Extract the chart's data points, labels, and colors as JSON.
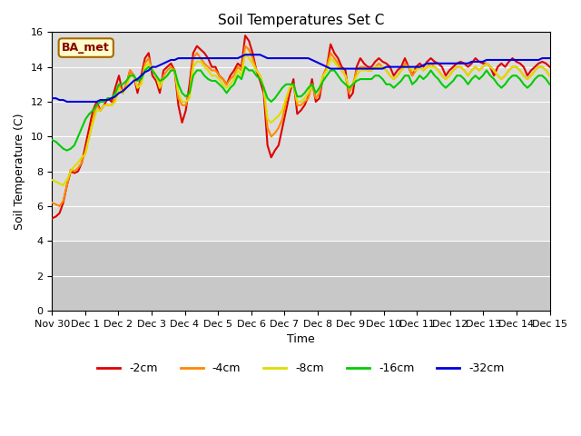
{
  "title": "Soil Temperatures Set C",
  "xlabel": "Time",
  "ylabel": "Soil Temperature (C)",
  "annotation": "BA_met",
  "ylim": [
    0,
    16
  ],
  "yticks": [
    0,
    2,
    4,
    6,
    8,
    10,
    12,
    14,
    16
  ],
  "xtick_labels": [
    "Nov 30",
    "Dec 1",
    "Dec 2",
    "Dec 3",
    "Dec 4",
    "Dec 5",
    "Dec 6",
    "Dec 7",
    "Dec 8",
    "Dec 9",
    "Dec 10",
    "Dec 11",
    "Dec 12",
    "Dec 13",
    "Dec 14",
    "Dec 15"
  ],
  "colors": {
    "-2cm": "#dd0000",
    "-4cm": "#ff8800",
    "-8cm": "#dddd00",
    "-16cm": "#00cc00",
    "-32cm": "#0000dd"
  },
  "bg_upper": "#dcdcdc",
  "bg_lower": "#c8c8c8",
  "figsize": [
    6.4,
    4.8
  ],
  "dpi": 100,
  "series": {
    "-2cm": [
      5.3,
      5.4,
      5.6,
      6.2,
      7.2,
      8.0,
      7.9,
      8.0,
      8.5,
      9.5,
      10.5,
      11.5,
      12.0,
      11.5,
      11.8,
      12.2,
      12.0,
      12.8,
      13.5,
      12.5,
      13.0,
      13.8,
      13.5,
      12.5,
      13.5,
      14.5,
      14.8,
      13.5,
      13.2,
      12.5,
      13.8,
      14.0,
      14.2,
      13.8,
      11.8,
      10.8,
      11.5,
      13.0,
      14.8,
      15.2,
      15.0,
      14.8,
      14.5,
      14.0,
      14.0,
      13.5,
      13.3,
      13.0,
      13.5,
      13.8,
      14.2,
      14.0,
      15.8,
      15.5,
      14.8,
      13.8,
      13.2,
      12.5,
      9.5,
      8.8,
      9.2,
      9.5,
      10.5,
      11.5,
      12.5,
      13.3,
      11.3,
      11.5,
      11.8,
      12.3,
      13.3,
      12.0,
      12.2,
      13.5,
      14.0,
      15.3,
      14.8,
      14.5,
      14.0,
      13.8,
      12.2,
      12.5,
      14.0,
      14.5,
      14.2,
      14.0,
      14.0,
      14.3,
      14.5,
      14.3,
      14.2,
      14.0,
      13.5,
      13.8,
      14.0,
      14.5,
      14.0,
      13.5,
      14.0,
      14.2,
      14.0,
      14.3,
      14.5,
      14.3,
      14.2,
      14.0,
      13.5,
      13.8,
      14.0,
      14.2,
      14.3,
      14.2,
      14.0,
      14.2,
      14.5,
      14.3,
      14.2,
      14.2,
      14.0,
      13.5,
      14.0,
      14.2,
      14.0,
      14.3,
      14.5,
      14.3,
      14.2,
      14.0,
      13.5,
      13.8,
      14.0,
      14.2,
      14.3,
      14.2,
      14.0
    ],
    "-4cm": [
      6.2,
      6.1,
      6.0,
      6.3,
      7.2,
      8.1,
      8.0,
      8.2,
      8.5,
      9.2,
      10.0,
      11.0,
      11.8,
      11.5,
      11.8,
      11.8,
      11.8,
      12.2,
      13.0,
      12.5,
      13.0,
      13.8,
      13.5,
      12.8,
      13.2,
      14.2,
      14.5,
      13.8,
      13.5,
      12.8,
      13.5,
      13.8,
      14.0,
      13.8,
      12.2,
      11.8,
      11.8,
      12.5,
      14.5,
      14.8,
      14.5,
      14.2,
      14.0,
      13.8,
      13.8,
      13.5,
      13.3,
      13.0,
      13.3,
      13.5,
      14.0,
      13.8,
      15.2,
      15.0,
      14.5,
      13.8,
      13.5,
      12.8,
      10.5,
      10.0,
      10.2,
      10.5,
      11.0,
      12.0,
      12.8,
      13.0,
      11.8,
      11.8,
      12.0,
      12.2,
      13.0,
      12.2,
      12.5,
      13.5,
      14.0,
      14.8,
      14.5,
      14.2,
      13.8,
      13.5,
      12.5,
      13.0,
      13.8,
      14.0,
      14.0,
      13.8,
      13.8,
      14.0,
      14.2,
      14.0,
      13.8,
      13.5,
      13.3,
      13.5,
      13.8,
      14.2,
      14.0,
      13.5,
      13.8,
      14.0,
      13.8,
      14.0,
      14.2,
      14.0,
      13.8,
      13.5,
      13.3,
      13.5,
      13.8,
      14.0,
      14.0,
      13.8,
      13.5,
      13.8,
      14.0,
      13.8,
      14.0,
      14.2,
      14.0,
      13.8,
      13.5,
      13.3,
      13.5,
      13.8,
      14.0,
      14.0,
      13.8,
      13.5,
      13.3,
      13.5,
      13.8,
      14.0,
      14.0,
      13.8,
      13.5
    ],
    "-8cm": [
      7.5,
      7.4,
      7.3,
      7.2,
      7.5,
      8.0,
      8.3,
      8.5,
      8.8,
      9.0,
      10.0,
      10.8,
      11.5,
      11.5,
      11.8,
      11.8,
      11.8,
      12.0,
      12.8,
      12.5,
      12.8,
      13.5,
      13.5,
      12.8,
      13.0,
      14.0,
      14.2,
      13.8,
      13.5,
      12.8,
      13.3,
      13.5,
      13.8,
      13.8,
      12.5,
      12.0,
      12.0,
      12.2,
      14.0,
      14.3,
      14.3,
      14.0,
      13.8,
      13.5,
      13.5,
      13.3,
      13.0,
      12.8,
      13.0,
      13.3,
      13.8,
      13.5,
      14.8,
      14.5,
      14.2,
      13.8,
      13.5,
      12.8,
      11.0,
      10.8,
      11.0,
      11.2,
      11.5,
      12.2,
      12.8,
      13.0,
      12.0,
      12.0,
      12.2,
      12.5,
      13.0,
      12.5,
      12.8,
      13.5,
      13.8,
      14.5,
      14.3,
      14.0,
      13.8,
      13.5,
      12.8,
      13.0,
      13.5,
      13.8,
      13.8,
      13.8,
      13.8,
      14.0,
      14.0,
      14.0,
      13.8,
      13.5,
      13.3,
      13.5,
      13.8,
      14.0,
      14.0,
      13.8,
      13.8,
      14.0,
      13.8,
      14.0,
      14.0,
      14.0,
      13.8,
      13.5,
      13.3,
      13.5,
      13.8,
      14.0,
      14.0,
      13.8,
      13.5,
      13.8,
      14.0,
      13.8,
      14.0,
      14.2,
      14.0,
      13.8,
      13.5,
      13.3,
      13.5,
      13.8,
      14.0,
      14.0,
      13.8,
      13.5,
      13.3,
      13.5,
      13.8,
      14.0,
      14.0,
      13.8,
      13.5
    ],
    "-16cm": [
      9.8,
      9.7,
      9.5,
      9.3,
      9.2,
      9.3,
      9.5,
      10.0,
      10.5,
      11.0,
      11.3,
      11.5,
      11.8,
      12.0,
      12.0,
      12.2,
      12.2,
      12.5,
      13.0,
      13.0,
      13.2,
      13.5,
      13.5,
      13.2,
      13.3,
      13.8,
      14.0,
      13.8,
      13.5,
      13.2,
      13.3,
      13.5,
      13.8,
      13.8,
      13.0,
      12.5,
      12.3,
      12.5,
      13.5,
      13.8,
      13.8,
      13.5,
      13.3,
      13.2,
      13.2,
      13.0,
      12.8,
      12.5,
      12.8,
      13.0,
      13.5,
      13.3,
      14.0,
      13.8,
      13.8,
      13.5,
      13.3,
      12.8,
      12.2,
      12.0,
      12.2,
      12.5,
      12.8,
      13.0,
      13.0,
      13.0,
      12.3,
      12.3,
      12.5,
      12.8,
      13.0,
      12.5,
      12.8,
      13.2,
      13.5,
      13.8,
      13.8,
      13.5,
      13.2,
      13.0,
      12.8,
      13.0,
      13.2,
      13.3,
      13.3,
      13.3,
      13.3,
      13.5,
      13.5,
      13.3,
      13.0,
      13.0,
      12.8,
      13.0,
      13.2,
      13.5,
      13.5,
      13.0,
      13.2,
      13.5,
      13.3,
      13.5,
      13.8,
      13.5,
      13.3,
      13.0,
      12.8,
      13.0,
      13.2,
      13.5,
      13.5,
      13.3,
      13.0,
      13.3,
      13.5,
      13.3,
      13.5,
      13.8,
      13.5,
      13.3,
      13.0,
      12.8,
      13.0,
      13.3,
      13.5,
      13.5,
      13.3,
      13.0,
      12.8,
      13.0,
      13.3,
      13.5,
      13.5,
      13.3,
      13.0
    ],
    "-32cm": [
      12.2,
      12.2,
      12.1,
      12.1,
      12.0,
      12.0,
      12.0,
      12.0,
      12.0,
      12.0,
      12.0,
      12.0,
      12.0,
      12.1,
      12.1,
      12.1,
      12.2,
      12.3,
      12.5,
      12.6,
      12.8,
      13.0,
      13.2,
      13.3,
      13.5,
      13.7,
      13.8,
      14.0,
      14.0,
      14.1,
      14.2,
      14.3,
      14.4,
      14.4,
      14.5,
      14.5,
      14.5,
      14.5,
      14.5,
      14.5,
      14.5,
      14.5,
      14.5,
      14.5,
      14.5,
      14.5,
      14.5,
      14.5,
      14.5,
      14.5,
      14.5,
      14.6,
      14.7,
      14.7,
      14.7,
      14.7,
      14.7,
      14.6,
      14.5,
      14.5,
      14.5,
      14.5,
      14.5,
      14.5,
      14.5,
      14.5,
      14.5,
      14.5,
      14.5,
      14.5,
      14.4,
      14.3,
      14.2,
      14.1,
      14.0,
      13.9,
      13.9,
      13.9,
      13.9,
      13.9,
      13.9,
      13.9,
      13.9,
      13.9,
      13.9,
      13.9,
      13.9,
      13.9,
      13.9,
      13.9,
      14.0,
      14.0,
      14.0,
      14.0,
      14.0,
      14.0,
      14.0,
      14.0,
      14.0,
      14.0,
      14.1,
      14.2,
      14.2,
      14.2,
      14.2,
      14.2,
      14.2,
      14.2,
      14.2,
      14.2,
      14.2,
      14.2,
      14.2,
      14.3,
      14.3,
      14.3,
      14.3,
      14.4,
      14.4,
      14.4,
      14.4,
      14.4,
      14.4,
      14.4,
      14.4,
      14.4,
      14.4,
      14.4,
      14.4,
      14.4,
      14.4,
      14.4,
      14.5,
      14.5,
      14.5
    ]
  }
}
